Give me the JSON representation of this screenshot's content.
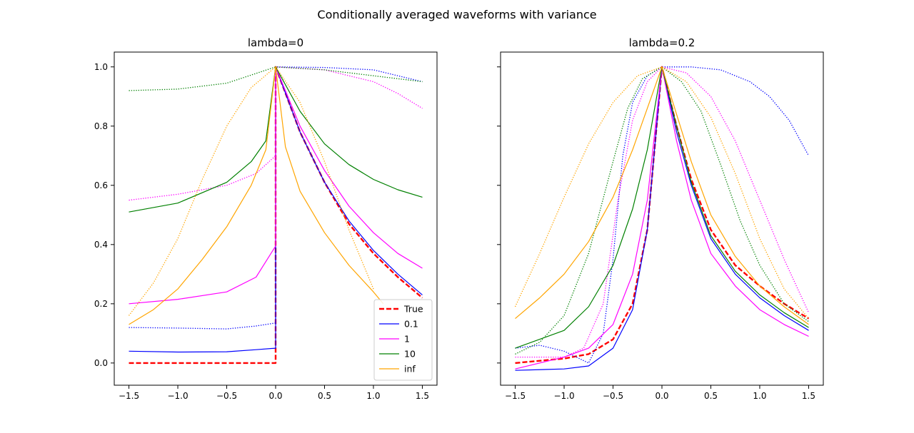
{
  "figure": {
    "suptitle": "Conditionally averaged waveforms with variance"
  },
  "colors": {
    "True": "#ff0000",
    "0.1": "#0000ff",
    "1": "#ff00ff",
    "10": "#008000",
    "inf": "#ffa500"
  },
  "chart_data": [
    {
      "type": "line",
      "title": "lambda=0",
      "xlim": [
        -1.65,
        1.65
      ],
      "ylim": [
        -0.075,
        1.05
      ],
      "xticks": [
        "−1.5",
        "−1.0",
        "−0.5",
        "0.0",
        "0.5",
        "1.0",
        "1.5"
      ],
      "xtick_values": [
        -1.5,
        -1.0,
        -0.5,
        0.0,
        0.5,
        1.0,
        1.5
      ],
      "yticks": [
        "0.0",
        "0.2",
        "0.4",
        "0.6",
        "0.8",
        "1.0"
      ],
      "ytick_values": [
        0.0,
        0.2,
        0.4,
        0.6,
        0.8,
        1.0
      ],
      "legend": {
        "position": "lower right",
        "entries": [
          "True",
          "0.1",
          "1",
          "10",
          "inf"
        ]
      },
      "series": [
        {
          "name": "True",
          "style": "dashed",
          "color": "#ff0000",
          "x": [
            -1.5,
            0.0,
            0.0,
            0.25,
            0.5,
            0.75,
            1.0,
            1.25,
            1.5
          ],
          "y": [
            0.0,
            0.0,
            1.0,
            0.78,
            0.61,
            0.47,
            0.37,
            0.29,
            0.22
          ]
        },
        {
          "name": "0.1",
          "style": "solid",
          "color": "#0000ff",
          "x": [
            -1.5,
            -1.0,
            -0.5,
            -0.2,
            0.0,
            0.0,
            0.25,
            0.5,
            0.75,
            1.0,
            1.25,
            1.5
          ],
          "y": [
            0.04,
            0.037,
            0.038,
            0.045,
            0.05,
            1.0,
            0.78,
            0.61,
            0.48,
            0.38,
            0.3,
            0.23
          ]
        },
        {
          "name": "0.1 variance",
          "style": "dotted",
          "color": "#0000ff",
          "x": [
            -1.5,
            -1.0,
            -0.5,
            -0.2,
            0.0,
            0.0,
            0.5,
            1.0,
            1.5
          ],
          "y": [
            0.12,
            0.118,
            0.115,
            0.125,
            0.135,
            1.0,
            0.998,
            0.99,
            0.95
          ]
        },
        {
          "name": "1",
          "style": "solid",
          "color": "#ff00ff",
          "x": [
            -1.5,
            -1.0,
            -0.5,
            -0.2,
            0.0,
            0.0,
            0.25,
            0.5,
            0.75,
            1.0,
            1.25,
            1.5
          ],
          "y": [
            0.2,
            0.215,
            0.24,
            0.29,
            0.395,
            1.0,
            0.8,
            0.65,
            0.53,
            0.44,
            0.37,
            0.32
          ]
        },
        {
          "name": "1 variance",
          "style": "dotted",
          "color": "#ff00ff",
          "x": [
            -1.5,
            -1.0,
            -0.5,
            -0.2,
            0.0,
            0.0,
            0.5,
            1.0,
            1.25,
            1.5
          ],
          "y": [
            0.55,
            0.57,
            0.6,
            0.64,
            0.7,
            1.0,
            0.99,
            0.95,
            0.91,
            0.86
          ]
        },
        {
          "name": "10",
          "style": "solid",
          "color": "#008000",
          "x": [
            -1.5,
            -1.0,
            -0.5,
            -0.25,
            -0.1,
            0.0,
            0.25,
            0.5,
            0.75,
            1.0,
            1.25,
            1.5
          ],
          "y": [
            0.51,
            0.54,
            0.61,
            0.68,
            0.75,
            1.0,
            0.85,
            0.74,
            0.67,
            0.62,
            0.585,
            0.56
          ]
        },
        {
          "name": "10 variance",
          "style": "dotted",
          "color": "#008000",
          "x": [
            -1.5,
            -1.0,
            -0.5,
            0.0,
            0.5,
            1.0,
            1.5
          ],
          "y": [
            0.92,
            0.925,
            0.945,
            1.0,
            0.99,
            0.97,
            0.95
          ]
        },
        {
          "name": "inf",
          "style": "solid",
          "color": "#ffa500",
          "x": [
            -1.5,
            -1.25,
            -1.0,
            -0.75,
            -0.5,
            -0.25,
            -0.1,
            0.0,
            0.1,
            0.25,
            0.5,
            0.75,
            1.0,
            1.1
          ],
          "y": [
            0.13,
            0.18,
            0.25,
            0.35,
            0.46,
            0.6,
            0.72,
            1.0,
            0.73,
            0.58,
            0.44,
            0.33,
            0.24,
            0.2
          ]
        },
        {
          "name": "inf variance",
          "style": "dotted",
          "color": "#ffa500",
          "x": [
            -1.5,
            -1.25,
            -1.0,
            -0.75,
            -0.5,
            -0.25,
            0.0,
            0.25,
            0.5,
            0.75,
            1.0
          ],
          "y": [
            0.16,
            0.27,
            0.42,
            0.62,
            0.8,
            0.93,
            1.0,
            0.88,
            0.68,
            0.45,
            0.25
          ]
        }
      ]
    },
    {
      "type": "line",
      "title": "lambda=0.2",
      "xlim": [
        -1.65,
        1.65
      ],
      "ylim": [
        -0.075,
        1.05
      ],
      "xticks": [
        "−1.5",
        "−1.0",
        "−0.5",
        "0.0",
        "0.5",
        "1.0",
        "1.5"
      ],
      "xtick_values": [
        -1.5,
        -1.0,
        -0.5,
        0.0,
        0.5,
        1.0,
        1.5
      ],
      "yticks": [
        "",
        "",
        "",
        "",
        "",
        ""
      ],
      "ytick_values": [
        0.0,
        0.2,
        0.4,
        0.6,
        0.8,
        1.0
      ],
      "series": [
        {
          "name": "True",
          "style": "dashed",
          "color": "#ff0000",
          "x": [
            -1.5,
            -1.0,
            -0.75,
            -0.5,
            -0.3,
            -0.15,
            0.0,
            0.15,
            0.3,
            0.5,
            0.75,
            1.0,
            1.25,
            1.5
          ],
          "y": [
            0.0,
            0.015,
            0.03,
            0.08,
            0.2,
            0.45,
            1.0,
            0.8,
            0.62,
            0.45,
            0.33,
            0.26,
            0.2,
            0.15
          ]
        },
        {
          "name": "0.1",
          "style": "solid",
          "color": "#0000ff",
          "x": [
            -1.5,
            -1.0,
            -0.75,
            -0.5,
            -0.3,
            -0.15,
            0.0,
            0.15,
            0.3,
            0.5,
            0.75,
            1.0,
            1.25,
            1.5
          ],
          "y": [
            -0.025,
            -0.02,
            -0.01,
            0.05,
            0.18,
            0.45,
            1.0,
            0.78,
            0.6,
            0.42,
            0.3,
            0.22,
            0.16,
            0.11
          ]
        },
        {
          "name": "0.1 variance",
          "style": "dotted",
          "color": "#0000ff",
          "x": [
            -1.5,
            -1.25,
            -1.0,
            -0.75,
            -0.6,
            -0.5,
            -0.4,
            -0.3,
            -0.15,
            0.0,
            0.3,
            0.6,
            0.9,
            1.1,
            1.3,
            1.5
          ],
          "y": [
            0.05,
            0.06,
            0.04,
            0.0,
            0.1,
            0.35,
            0.7,
            0.88,
            0.97,
            1.0,
            1.0,
            0.99,
            0.95,
            0.9,
            0.82,
            0.7
          ]
        },
        {
          "name": "1",
          "style": "solid",
          "color": "#ff00ff",
          "x": [
            -1.5,
            -1.0,
            -0.75,
            -0.5,
            -0.3,
            -0.15,
            0.0,
            0.15,
            0.3,
            0.5,
            0.75,
            1.0,
            1.25,
            1.5
          ],
          "y": [
            -0.02,
            0.02,
            0.05,
            0.13,
            0.3,
            0.55,
            1.0,
            0.75,
            0.55,
            0.37,
            0.26,
            0.18,
            0.13,
            0.09
          ]
        },
        {
          "name": "1 variance",
          "style": "dotted",
          "color": "#ff00ff",
          "x": [
            -1.5,
            -1.0,
            -0.8,
            -0.6,
            -0.45,
            -0.3,
            -0.15,
            0.0,
            0.25,
            0.5,
            0.75,
            1.0,
            1.25,
            1.5
          ],
          "y": [
            0.02,
            0.02,
            0.05,
            0.2,
            0.55,
            0.82,
            0.95,
            1.0,
            0.98,
            0.9,
            0.75,
            0.55,
            0.35,
            0.17
          ]
        },
        {
          "name": "10",
          "style": "solid",
          "color": "#008000",
          "x": [
            -1.5,
            -1.0,
            -0.75,
            -0.5,
            -0.3,
            -0.15,
            0.0,
            0.15,
            0.3,
            0.5,
            0.75,
            1.0,
            1.25,
            1.5
          ],
          "y": [
            0.05,
            0.11,
            0.19,
            0.33,
            0.52,
            0.72,
            1.0,
            0.8,
            0.61,
            0.43,
            0.31,
            0.23,
            0.17,
            0.12
          ]
        },
        {
          "name": "10 variance",
          "style": "dotted",
          "color": "#008000",
          "x": [
            -1.5,
            -1.25,
            -1.0,
            -0.75,
            -0.5,
            -0.35,
            -0.2,
            0.0,
            0.2,
            0.4,
            0.6,
            0.8,
            1.0,
            1.25,
            1.5
          ],
          "y": [
            0.03,
            0.07,
            0.16,
            0.37,
            0.68,
            0.86,
            0.96,
            1.0,
            0.95,
            0.85,
            0.67,
            0.48,
            0.33,
            0.2,
            0.14
          ]
        },
        {
          "name": "inf",
          "style": "solid",
          "color": "#ffa500",
          "x": [
            -1.5,
            -1.25,
            -1.0,
            -0.75,
            -0.5,
            -0.3,
            -0.15,
            0.0,
            0.15,
            0.3,
            0.5,
            0.75,
            1.0,
            1.25,
            1.5
          ],
          "y": [
            0.15,
            0.22,
            0.3,
            0.41,
            0.56,
            0.72,
            0.86,
            1.0,
            0.84,
            0.68,
            0.5,
            0.36,
            0.26,
            0.19,
            0.13
          ]
        },
        {
          "name": "inf variance",
          "style": "dotted",
          "color": "#ffa500",
          "x": [
            -1.5,
            -1.25,
            -1.0,
            -0.75,
            -0.5,
            -0.25,
            0.0,
            0.25,
            0.5,
            0.75,
            1.0,
            1.25,
            1.5
          ],
          "y": [
            0.19,
            0.37,
            0.56,
            0.74,
            0.88,
            0.97,
            1.0,
            0.95,
            0.83,
            0.64,
            0.42,
            0.25,
            0.15
          ]
        }
      ]
    }
  ]
}
